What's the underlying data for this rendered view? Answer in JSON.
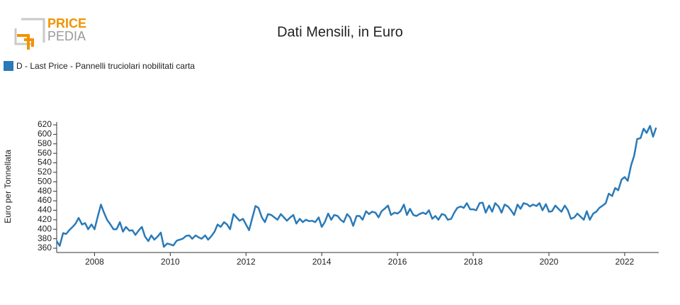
{
  "logo": {
    "top": "PRICE",
    "bottom": "PEDIA"
  },
  "chart_data": {
    "type": "line",
    "title": "Dati Mensili, in Euro",
    "y_label": "Euro per Tonnellata",
    "x": [
      2007,
      2007.08,
      2007.17,
      2007.25,
      2007.33,
      2007.42,
      2007.5,
      2007.58,
      2007.67,
      2007.75,
      2007.83,
      2007.92,
      2008,
      2008.08,
      2008.17,
      2008.25,
      2008.33,
      2008.42,
      2008.5,
      2008.58,
      2008.67,
      2008.75,
      2008.83,
      2008.92,
      2009,
      2009.08,
      2009.17,
      2009.25,
      2009.33,
      2009.42,
      2009.5,
      2009.58,
      2009.67,
      2009.75,
      2009.83,
      2009.92,
      2010,
      2010.08,
      2010.17,
      2010.25,
      2010.33,
      2010.42,
      2010.5,
      2010.58,
      2010.67,
      2010.75,
      2010.83,
      2010.92,
      2011,
      2011.08,
      2011.17,
      2011.25,
      2011.33,
      2011.42,
      2011.5,
      2011.58,
      2011.67,
      2011.75,
      2011.83,
      2011.92,
      2012,
      2012.08,
      2012.17,
      2012.25,
      2012.33,
      2012.42,
      2012.5,
      2012.58,
      2012.67,
      2012.75,
      2012.83,
      2012.92,
      2013,
      2013.08,
      2013.17,
      2013.25,
      2013.33,
      2013.42,
      2013.5,
      2013.58,
      2013.67,
      2013.75,
      2013.83,
      2013.92,
      2014,
      2014.08,
      2014.17,
      2014.25,
      2014.33,
      2014.42,
      2014.5,
      2014.58,
      2014.67,
      2014.75,
      2014.83,
      2014.92,
      2015,
      2015.08,
      2015.17,
      2015.25,
      2015.33,
      2015.42,
      2015.5,
      2015.58,
      2015.67,
      2015.75,
      2015.83,
      2015.92,
      2016,
      2016.08,
      2016.17,
      2016.25,
      2016.33,
      2016.42,
      2016.5,
      2016.58,
      2016.67,
      2016.75,
      2016.83,
      2016.92,
      2017,
      2017.08,
      2017.17,
      2017.25,
      2017.33,
      2017.42,
      2017.5,
      2017.58,
      2017.67,
      2017.75,
      2017.83,
      2017.92,
      2018,
      2018.08,
      2018.17,
      2018.25,
      2018.33,
      2018.42,
      2018.5,
      2018.58,
      2018.67,
      2018.75,
      2018.83,
      2018.92,
      2019,
      2019.08,
      2019.17,
      2019.25,
      2019.33,
      2019.42,
      2019.5,
      2019.58,
      2019.67,
      2019.75,
      2019.83,
      2019.92,
      2020,
      2020.08,
      2020.17,
      2020.25,
      2020.33,
      2020.42,
      2020.5,
      2020.58,
      2020.67,
      2020.75,
      2020.83,
      2020.92,
      2021,
      2021.08,
      2021.17,
      2021.25,
      2021.33,
      2021.42,
      2021.5,
      2021.58,
      2021.67,
      2021.75,
      2021.83,
      2021.92,
      2022,
      2022.08,
      2022.17,
      2022.25,
      2022.33,
      2022.42,
      2022.5,
      2022.58,
      2022.67,
      2022.75,
      2022.83
    ],
    "series": [
      {
        "name": "D - Last Price - Pannelli truciolari nobilitati carta",
        "color": "#2a7ab8",
        "values": [
          375,
          365,
          392,
          390,
          398,
          405,
          412,
          424,
          410,
          413,
          400,
          410,
          400,
          425,
          452,
          435,
          420,
          410,
          400,
          400,
          415,
          395,
          405,
          397,
          398,
          388,
          398,
          405,
          385,
          375,
          387,
          378,
          385,
          393,
          363,
          370,
          368,
          366,
          376,
          378,
          380,
          386,
          387,
          380,
          387,
          383,
          380,
          387,
          378,
          385,
          395,
          410,
          405,
          415,
          410,
          400,
          432,
          425,
          418,
          422,
          410,
          398,
          425,
          449,
          445,
          425,
          415,
          432,
          430,
          425,
          420,
          432,
          425,
          418,
          425,
          430,
          412,
          422,
          415,
          420,
          417,
          418,
          415,
          425,
          405,
          415,
          433,
          420,
          430,
          428,
          420,
          415,
          432,
          425,
          407,
          428,
          428,
          420,
          438,
          432,
          437,
          435,
          425,
          438,
          444,
          450,
          430,
          435,
          433,
          438,
          452,
          430,
          443,
          430,
          428,
          432,
          435,
          432,
          440,
          422,
          428,
          420,
          432,
          430,
          420,
          422,
          435,
          445,
          448,
          445,
          455,
          442,
          442,
          440,
          455,
          456,
          435,
          450,
          437,
          455,
          448,
          435,
          452,
          448,
          440,
          430,
          452,
          443,
          455,
          453,
          448,
          452,
          449,
          455,
          440,
          453,
          437,
          438,
          450,
          443,
          437,
          450,
          440,
          422,
          425,
          433,
          427,
          420,
          438,
          420,
          433,
          437,
          445,
          450,
          455,
          475,
          470,
          487,
          482,
          505,
          510,
          502,
          535,
          555,
          590,
          592,
          612,
          603,
          618,
          595,
          614
        ]
      }
    ],
    "xlim": [
      2007,
      2022.9
    ],
    "xticks": [
      2008,
      2010,
      2012,
      2014,
      2016,
      2018,
      2020,
      2022
    ],
    "ylim": [
      351,
      626
    ],
    "yticks": [
      360,
      380,
      400,
      420,
      440,
      460,
      480,
      500,
      520,
      540,
      560,
      580,
      600,
      620
    ]
  }
}
